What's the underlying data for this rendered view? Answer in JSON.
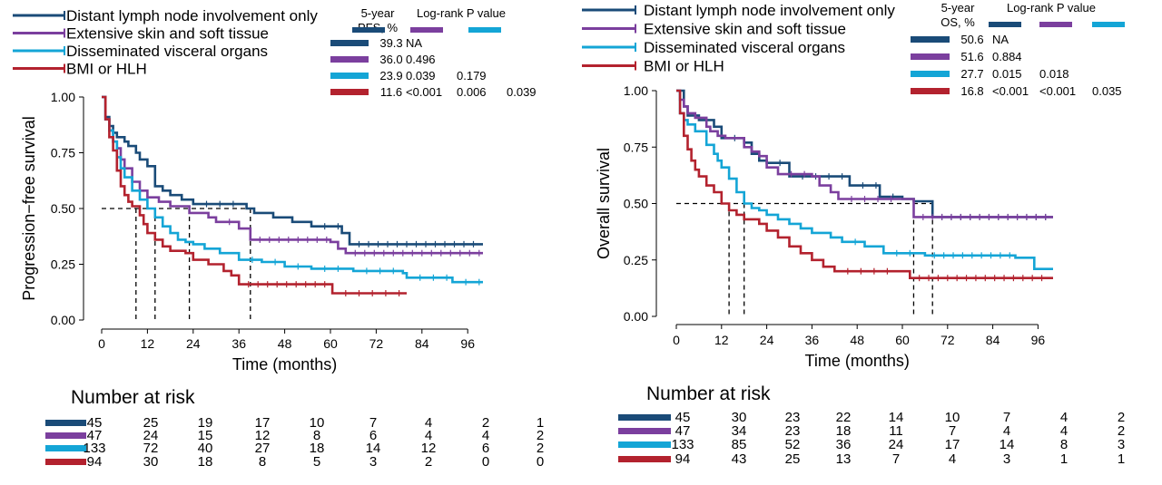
{
  "colors": {
    "distant": "#1a4b78",
    "skin": "#7b3f9e",
    "visceral": "#14a5d6",
    "bmi": "#b3222e"
  },
  "groups": [
    "Distant lymph node involvement only",
    "Extensive skin and soft tissue",
    "Disseminated visceral organs",
    "BMI or HLH"
  ],
  "chart_data": [
    {
      "id": "pfs",
      "type": "line",
      "subtype": "kaplan-meier",
      "ylabel": "Progression−free survival",
      "xlabel": "Time (months)",
      "xlim": [
        -2,
        100
      ],
      "ylim": [
        0,
        1
      ],
      "xticks": [
        "0",
        "12",
        "24",
        "36",
        "48",
        "60",
        "72",
        "84",
        "96"
      ],
      "yticks": [
        "0.00",
        "0.25",
        "0.50",
        "0.75",
        "1.00"
      ],
      "stats_header": {
        "col1a": "5-year",
        "col1b": "PFS, %",
        "col2": "Log-rank P value"
      },
      "stats_rows": [
        {
          "rate": "39.3",
          "p1": "NA",
          "p2": "",
          "p3": ""
        },
        {
          "rate": "36.0",
          "p1": "0.496",
          "p2": "",
          "p3": ""
        },
        {
          "rate": "23.9",
          "p1": "0.039",
          "p2": "0.179",
          "p3": ""
        },
        {
          "rate": "11.6",
          "p1": "<0.001",
          "p2": "0.006",
          "p3": "0.039"
        }
      ],
      "medians": [
        {
          "x": 39,
          "group": "Distant lymph node involvement only"
        },
        {
          "x": 23,
          "group": "Extensive skin and soft tissue"
        },
        {
          "x": 14,
          "group": "Disseminated visceral organs"
        },
        {
          "x": 9,
          "group": "BMI or HLH"
        }
      ],
      "series": [
        {
          "name": "Distant lymph node involvement only",
          "points": [
            [
              0,
              1.0
            ],
            [
              1,
              0.91
            ],
            [
              2,
              0.87
            ],
            [
              3,
              0.84
            ],
            [
              4,
              0.82
            ],
            [
              6,
              0.8
            ],
            [
              7,
              0.78
            ],
            [
              9,
              0.75
            ],
            [
              10,
              0.72
            ],
            [
              12,
              0.69
            ],
            [
              14,
              0.6
            ],
            [
              16,
              0.58
            ],
            [
              18,
              0.56
            ],
            [
              21,
              0.54
            ],
            [
              24,
              0.52
            ],
            [
              38,
              0.5
            ],
            [
              40,
              0.48
            ],
            [
              45,
              0.46
            ],
            [
              50,
              0.44
            ],
            [
              55,
              0.42
            ],
            [
              63,
              0.39
            ],
            [
              65,
              0.34
            ],
            [
              100,
              0.34
            ]
          ]
        },
        {
          "name": "Extensive skin and soft tissue",
          "points": [
            [
              0,
              1.0
            ],
            [
              1,
              0.9
            ],
            [
              2,
              0.85
            ],
            [
              3,
              0.8
            ],
            [
              4,
              0.77
            ],
            [
              5,
              0.72
            ],
            [
              6,
              0.68
            ],
            [
              8,
              0.62
            ],
            [
              10,
              0.58
            ],
            [
              12,
              0.55
            ],
            [
              15,
              0.53
            ],
            [
              18,
              0.51
            ],
            [
              23,
              0.48
            ],
            [
              28,
              0.46
            ],
            [
              30,
              0.44
            ],
            [
              36,
              0.41
            ],
            [
              39,
              0.36
            ],
            [
              60,
              0.35
            ],
            [
              62,
              0.32
            ],
            [
              64,
              0.3
            ],
            [
              100,
              0.3
            ]
          ]
        },
        {
          "name": "Disseminated visceral organs",
          "points": [
            [
              0,
              1.0
            ],
            [
              1,
              0.9
            ],
            [
              2,
              0.85
            ],
            [
              3,
              0.8
            ],
            [
              4,
              0.73
            ],
            [
              5,
              0.68
            ],
            [
              6,
              0.64
            ],
            [
              8,
              0.58
            ],
            [
              10,
              0.54
            ],
            [
              12,
              0.5
            ],
            [
              14,
              0.46
            ],
            [
              16,
              0.42
            ],
            [
              18,
              0.39
            ],
            [
              20,
              0.36
            ],
            [
              22,
              0.35
            ],
            [
              24,
              0.34
            ],
            [
              27,
              0.32
            ],
            [
              31,
              0.3
            ],
            [
              36,
              0.27
            ],
            [
              42,
              0.26
            ],
            [
              48,
              0.24
            ],
            [
              55,
              0.23
            ],
            [
              66,
              0.22
            ],
            [
              79,
              0.21
            ],
            [
              80,
              0.19
            ],
            [
              92,
              0.17
            ],
            [
              100,
              0.17
            ]
          ]
        },
        {
          "name": "BMI or HLH",
          "points": [
            [
              0,
              1.0
            ],
            [
              1,
              0.9
            ],
            [
              2,
              0.82
            ],
            [
              3,
              0.76
            ],
            [
              4,
              0.67
            ],
            [
              5,
              0.6
            ],
            [
              6,
              0.56
            ],
            [
              7,
              0.53
            ],
            [
              8,
              0.51
            ],
            [
              10,
              0.47
            ],
            [
              11,
              0.43
            ],
            [
              12,
              0.39
            ],
            [
              14,
              0.36
            ],
            [
              16,
              0.33
            ],
            [
              18,
              0.31
            ],
            [
              22,
              0.3
            ],
            [
              24,
              0.27
            ],
            [
              28,
              0.25
            ],
            [
              32,
              0.22
            ],
            [
              34,
              0.2
            ],
            [
              36,
              0.16
            ],
            [
              60,
              0.16
            ],
            [
              60.5,
              0.12
            ],
            [
              80,
              0.12
            ]
          ]
        }
      ],
      "risk_rows": [
        [
          "45",
          "25",
          "19",
          "17",
          "10",
          "7",
          "4",
          "2",
          "1"
        ],
        [
          "47",
          "24",
          "15",
          "12",
          "8",
          "6",
          "4",
          "4",
          "2"
        ],
        [
          "133",
          "72",
          "40",
          "27",
          "18",
          "14",
          "12",
          "6",
          "2"
        ],
        [
          "94",
          "30",
          "18",
          "8",
          "5",
          "3",
          "2",
          "0",
          "0"
        ]
      ]
    },
    {
      "id": "os",
      "type": "line",
      "subtype": "kaplan-meier",
      "ylabel": "Overall survival",
      "xlabel": "Time (months)",
      "xlim": [
        -2,
        100
      ],
      "ylim": [
        0,
        1
      ],
      "xticks": [
        "0",
        "12",
        "24",
        "36",
        "48",
        "60",
        "72",
        "84",
        "96"
      ],
      "yticks": [
        "0.00",
        "0.25",
        "0.50",
        "0.75",
        "1.00"
      ],
      "stats_header": {
        "col1a": "5-year",
        "col1b": "OS, %",
        "col2": "Log-rank P value"
      },
      "stats_rows": [
        {
          "rate": "50.6",
          "p1": "NA",
          "p2": "",
          "p3": ""
        },
        {
          "rate": "51.6",
          "p1": "0.884",
          "p2": "",
          "p3": ""
        },
        {
          "rate": "27.7",
          "p1": "0.015",
          "p2": "0.018",
          "p3": ""
        },
        {
          "rate": "16.8",
          "p1": "<0.001",
          "p2": "<0.001",
          "p3": "0.035"
        }
      ],
      "medians": [
        {
          "x": 63,
          "group": "Extensive skin and soft tissue"
        },
        {
          "x": 68,
          "group": "Distant lymph node involvement only"
        },
        {
          "x": 18,
          "group": "Disseminated visceral organs"
        },
        {
          "x": 14,
          "group": "BMI or HLH"
        }
      ],
      "series": [
        {
          "name": "Distant lymph node involvement only",
          "points": [
            [
              0,
              1.0
            ],
            [
              2,
              0.93
            ],
            [
              3,
              0.89
            ],
            [
              6,
              0.87
            ],
            [
              10,
              0.84
            ],
            [
              12,
              0.79
            ],
            [
              18,
              0.77
            ],
            [
              20,
              0.72
            ],
            [
              22,
              0.69
            ],
            [
              24,
              0.68
            ],
            [
              30,
              0.62
            ],
            [
              46,
              0.58
            ],
            [
              54,
              0.53
            ],
            [
              60,
              0.52
            ],
            [
              63,
              0.51
            ],
            [
              68,
              0.44
            ],
            [
              100,
              0.44
            ]
          ]
        },
        {
          "name": "Extensive skin and soft tissue",
          "points": [
            [
              0,
              1.0
            ],
            [
              1,
              0.96
            ],
            [
              2,
              0.93
            ],
            [
              3,
              0.9
            ],
            [
              5,
              0.88
            ],
            [
              8,
              0.84
            ],
            [
              9,
              0.82
            ],
            [
              11,
              0.8
            ],
            [
              13,
              0.79
            ],
            [
              18,
              0.75
            ],
            [
              20,
              0.73
            ],
            [
              22,
              0.71
            ],
            [
              24,
              0.66
            ],
            [
              27,
              0.63
            ],
            [
              36,
              0.62
            ],
            [
              38,
              0.58
            ],
            [
              41,
              0.55
            ],
            [
              43,
              0.52
            ],
            [
              60,
              0.52
            ],
            [
              63,
              0.44
            ],
            [
              100,
              0.44
            ]
          ]
        },
        {
          "name": "Disseminated visceral organs",
          "points": [
            [
              0,
              1.0
            ],
            [
              1,
              0.9
            ],
            [
              2,
              0.87
            ],
            [
              3,
              0.85
            ],
            [
              5,
              0.82
            ],
            [
              8,
              0.76
            ],
            [
              10,
              0.72
            ],
            [
              11,
              0.69
            ],
            [
              12,
              0.66
            ],
            [
              14,
              0.61
            ],
            [
              16,
              0.55
            ],
            [
              18,
              0.5
            ],
            [
              20,
              0.48
            ],
            [
              22,
              0.47
            ],
            [
              24,
              0.45
            ],
            [
              27,
              0.43
            ],
            [
              30,
              0.41
            ],
            [
              33,
              0.39
            ],
            [
              36,
              0.37
            ],
            [
              41,
              0.35
            ],
            [
              44,
              0.33
            ],
            [
              50,
              0.31
            ],
            [
              55,
              0.28
            ],
            [
              66,
              0.27
            ],
            [
              90,
              0.26
            ],
            [
              95,
              0.21
            ],
            [
              100,
              0.21
            ]
          ]
        },
        {
          "name": "BMI or HLH",
          "points": [
            [
              0,
              1.0
            ],
            [
              1,
              0.9
            ],
            [
              2,
              0.8
            ],
            [
              3,
              0.74
            ],
            [
              4,
              0.69
            ],
            [
              5,
              0.65
            ],
            [
              6,
              0.62
            ],
            [
              8,
              0.58
            ],
            [
              10,
              0.55
            ],
            [
              12,
              0.5
            ],
            [
              14,
              0.47
            ],
            [
              16,
              0.45
            ],
            [
              18,
              0.43
            ],
            [
              22,
              0.41
            ],
            [
              24,
              0.38
            ],
            [
              27,
              0.35
            ],
            [
              30,
              0.31
            ],
            [
              33,
              0.28
            ],
            [
              36,
              0.25
            ],
            [
              39,
              0.22
            ],
            [
              42,
              0.2
            ],
            [
              60,
              0.2
            ],
            [
              62,
              0.17
            ],
            [
              100,
              0.17
            ]
          ]
        }
      ],
      "risk_rows": [
        [
          "45",
          "30",
          "23",
          "22",
          "14",
          "10",
          "7",
          "4",
          "2"
        ],
        [
          "47",
          "34",
          "23",
          "18",
          "11",
          "7",
          "4",
          "4",
          "2"
        ],
        [
          "133",
          "85",
          "52",
          "36",
          "24",
          "17",
          "14",
          "8",
          "3"
        ],
        [
          "94",
          "43",
          "25",
          "13",
          "7",
          "4",
          "3",
          "1",
          "1"
        ]
      ]
    }
  ],
  "risk_title": "Number at risk"
}
